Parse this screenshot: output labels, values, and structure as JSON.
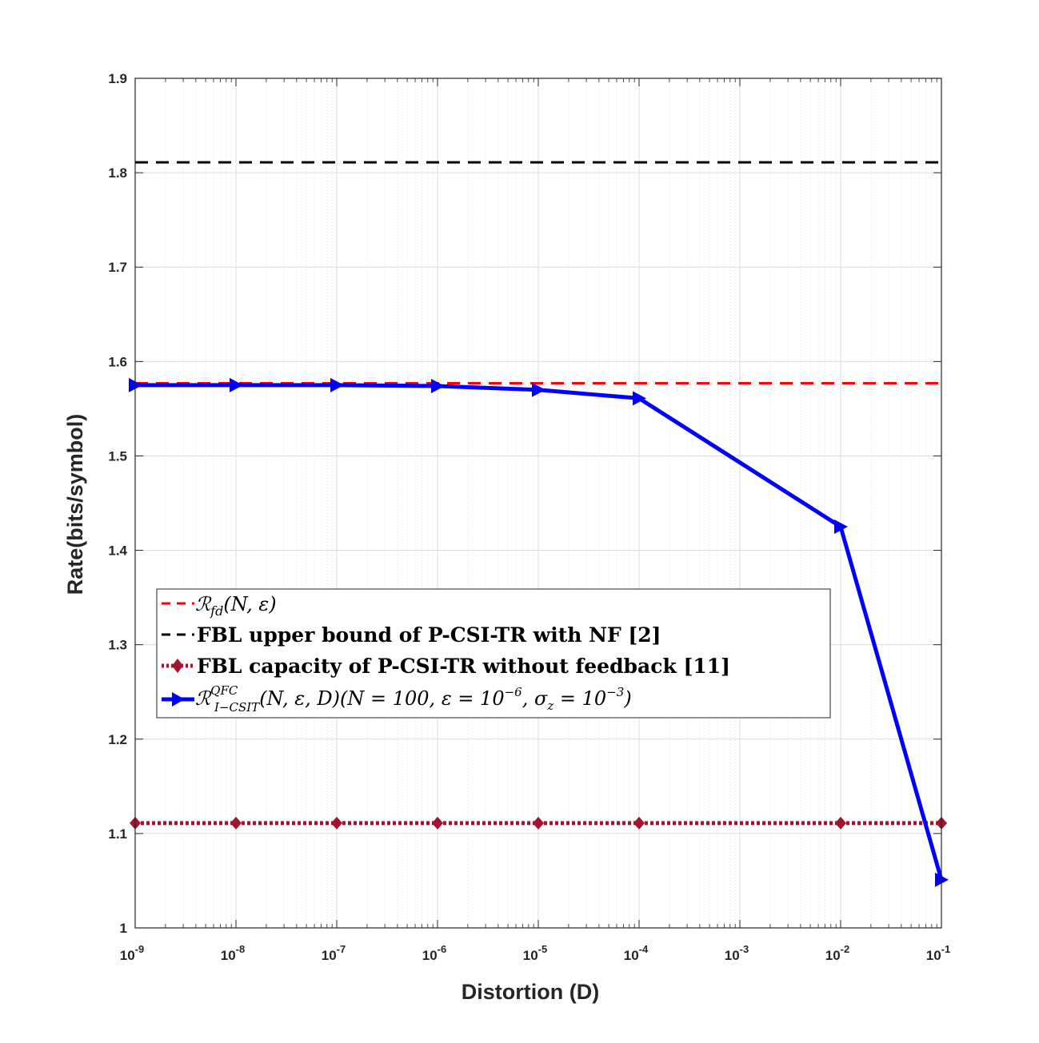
{
  "chart_data": {
    "type": "line",
    "title": "",
    "xlabel": "Distortion (D)",
    "ylabel": "Rate(bits/symbol)",
    "xscale": "log",
    "xlim": [
      1e-09,
      0.1
    ],
    "ylim": [
      1,
      1.9
    ],
    "grid": true,
    "minor_grid": true,
    "legend_position": "left-middle",
    "x_ticks": [
      {
        "base": "10",
        "exp": "-9"
      },
      {
        "base": "10",
        "exp": "-8"
      },
      {
        "base": "10",
        "exp": "-7"
      },
      {
        "base": "10",
        "exp": "-6"
      },
      {
        "base": "10",
        "exp": "-5"
      },
      {
        "base": "10",
        "exp": "-4"
      },
      {
        "base": "10",
        "exp": "-3"
      },
      {
        "base": "10",
        "exp": "-2"
      },
      {
        "base": "10",
        "exp": "-1"
      }
    ],
    "y_ticks": [
      "1",
      "1.1",
      "1.2",
      "1.3",
      "1.4",
      "1.5",
      "1.6",
      "1.7",
      "1.8",
      "1.9"
    ],
    "series": [
      {
        "name": "R_fd(N, ε)",
        "legend_main": "ℛ",
        "legend_sub": "fd",
        "legend_rest": "(N, ε)",
        "color": "#ff0000",
        "style": "dashed",
        "marker": "none",
        "x": [
          1e-09,
          0.1
        ],
        "y": [
          1.577,
          1.577
        ]
      },
      {
        "name": "FBL upper bound of P-CSI-TR with NF [2]",
        "legend_label": "FBL upper bound of P-CSI-TR with NF [2]",
        "color": "#000000",
        "style": "dashed",
        "marker": "none",
        "x": [
          1e-09,
          0.1
        ],
        "y": [
          1.811,
          1.811
        ]
      },
      {
        "name": "FBL capacity of P-CSI-TR without feedback [11]",
        "legend_label": "FBL capacity of P-CSI-TR without feedback [11]",
        "color": "#a2142f",
        "style": "dotted",
        "marker": "diamond",
        "x": [
          1e-09,
          1e-08,
          1e-07,
          1e-06,
          1e-05,
          0.0001,
          0.01,
          0.1
        ],
        "y": [
          1.111,
          1.111,
          1.111,
          1.111,
          1.111,
          1.111,
          1.111,
          1.111
        ]
      },
      {
        "name": "R^QFC_I-CSIT(N, ε, D)(N = 100, ε = 10^-6, σz = 10^-3)",
        "legend_main": "ℛ",
        "legend_sup": "QFC",
        "legend_sub": "I−CSIT",
        "legend_rest": "(N, ε, D)(N = 100, ε = 10",
        "legend_exp1": "−6",
        "legend_sigma": ", σ",
        "legend_sigma_sub": "z",
        "legend_eq": " = 10",
        "legend_exp2": "−3",
        "legend_close": ")",
        "color": "#0000ff",
        "style": "solid",
        "marker": "triangle-right",
        "x": [
          1e-09,
          1e-08,
          1e-07,
          1e-06,
          1e-05,
          0.0001,
          0.01,
          0.1
        ],
        "y": [
          1.575,
          1.575,
          1.575,
          1.574,
          1.57,
          1.561,
          1.425,
          1.051
        ]
      }
    ]
  }
}
